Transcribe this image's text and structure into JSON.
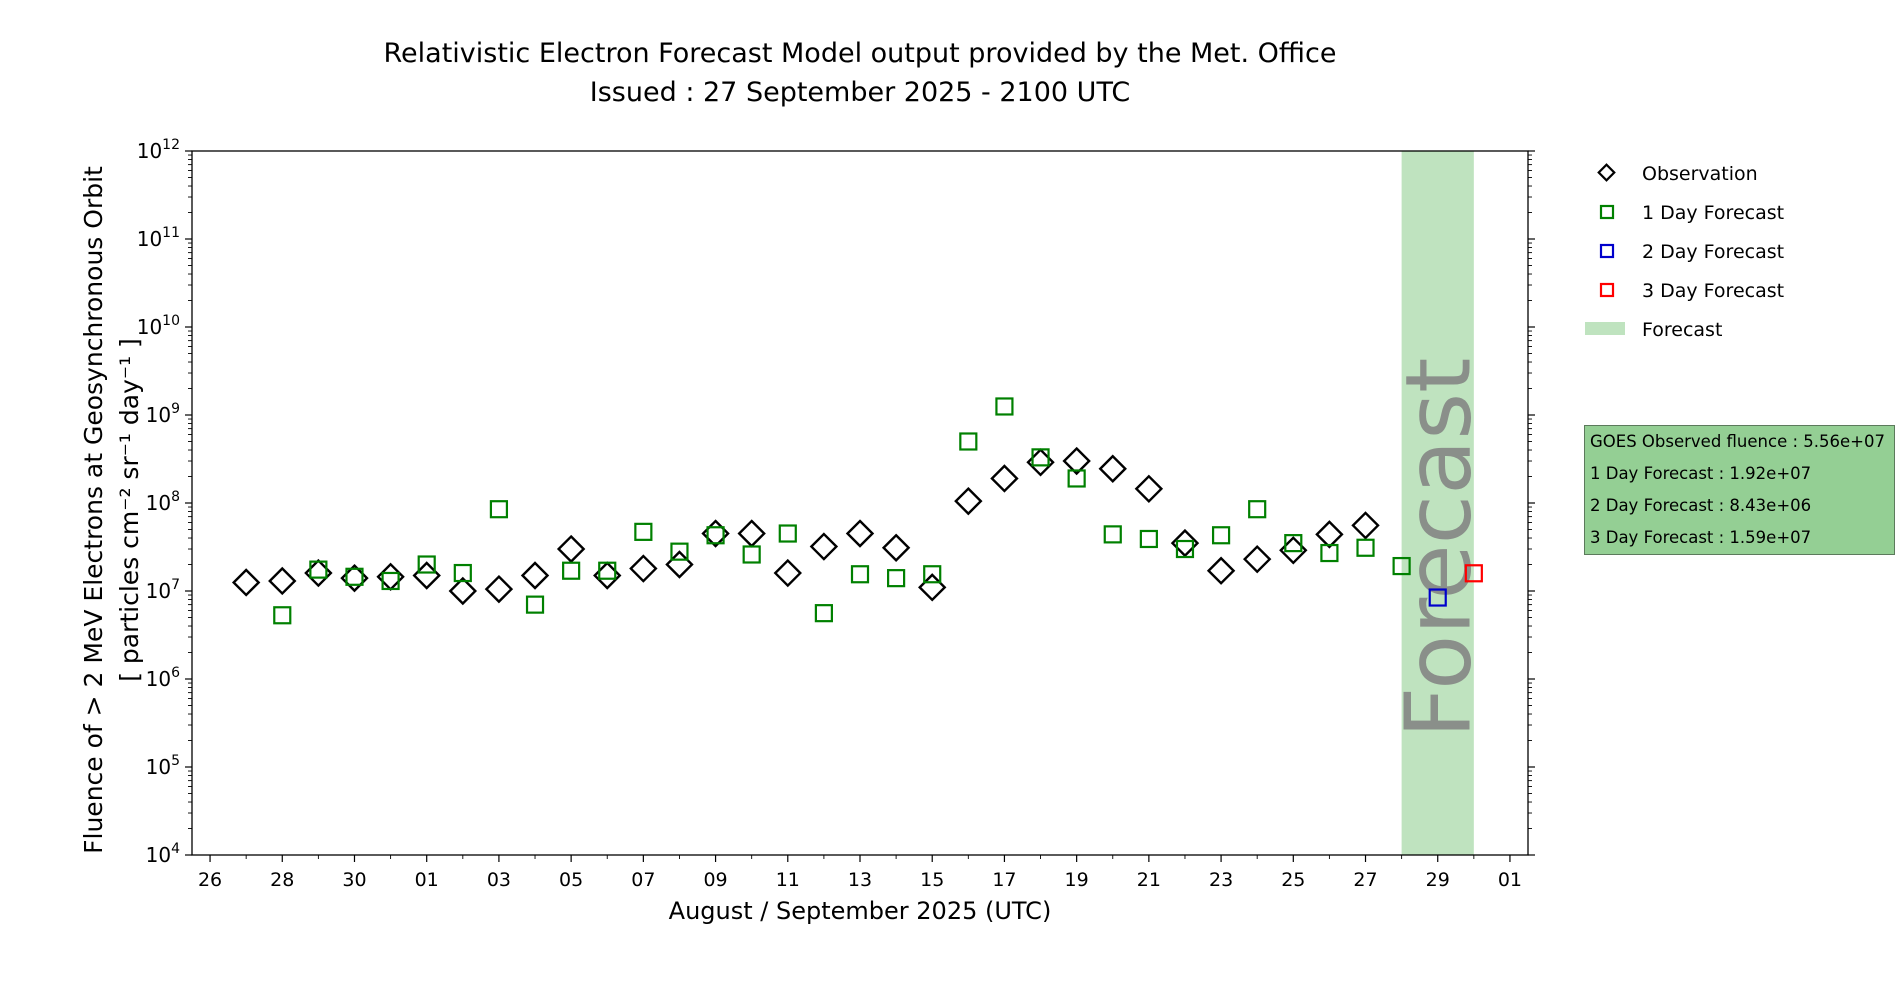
{
  "chart_data": {
    "type": "scatter",
    "title": "Relativistic Electron Forecast Model output provided by the Met. Office",
    "subtitle": "Issued : 27 September 2025 - 2100 UTC",
    "xlabel": "August / September 2025 (UTC)",
    "ylabel_line1": "Fluence of > 2 MeV Electrons at Geosynchronous Orbit",
    "ylabel_line2": "[ particles cm⁻² sr⁻¹ day⁻¹ ]",
    "y_scale": "log",
    "ylim": [
      10000,
      1000000000000
    ],
    "xlim": [
      "2025-08-25T12:00",
      "2025-10-01T12:00"
    ],
    "x_ticks": [
      "2025-08-26",
      "2025-08-28",
      "2025-08-30",
      "2025-09-01",
      "2025-09-03",
      "2025-09-05",
      "2025-09-07",
      "2025-09-09",
      "2025-09-11",
      "2025-09-13",
      "2025-09-15",
      "2025-09-17",
      "2025-09-19",
      "2025-09-21",
      "2025-09-23",
      "2025-09-25",
      "2025-09-27",
      "2025-09-29",
      "2025-10-01"
    ],
    "x_tick_labels": [
      "26",
      "28",
      "30",
      "01",
      "03",
      "05",
      "07",
      "09",
      "11",
      "13",
      "15",
      "17",
      "19",
      "21",
      "23",
      "25",
      "27",
      "29",
      "01"
    ],
    "y_ticks": [
      {
        "value": 10000,
        "base": "10",
        "exp": "4"
      },
      {
        "value": 100000,
        "base": "10",
        "exp": "5"
      },
      {
        "value": 1000000,
        "base": "10",
        "exp": "6"
      },
      {
        "value": 10000000,
        "base": "10",
        "exp": "7"
      },
      {
        "value": 100000000,
        "base": "10",
        "exp": "8"
      },
      {
        "value": 1000000000,
        "base": "10",
        "exp": "9"
      },
      {
        "value": 10000000000,
        "base": "10",
        "exp": "10"
      },
      {
        "value": 100000000000,
        "base": "10",
        "exp": "11"
      },
      {
        "value": 1000000000000,
        "base": "10",
        "exp": "12"
      }
    ],
    "forecast_region": {
      "start": "2025-09-28",
      "end": "2025-09-30",
      "label": "Forecast",
      "color": "#bfe3bf"
    },
    "series": [
      {
        "name": "Observation",
        "marker": "diamond",
        "color": "#000000",
        "points": [
          [
            "2025-08-27",
            12500000
          ],
          [
            "2025-08-28",
            13000000
          ],
          [
            "2025-08-29",
            16000000
          ],
          [
            "2025-08-30",
            14000000
          ],
          [
            "2025-08-31",
            14500000
          ],
          [
            "2025-09-01",
            15000000
          ],
          [
            "2025-09-02",
            10000000
          ],
          [
            "2025-09-03",
            10500000
          ],
          [
            "2025-09-04",
            15000000
          ],
          [
            "2025-09-05",
            30000000
          ],
          [
            "2025-09-06",
            15000000
          ],
          [
            "2025-09-07",
            18000000
          ],
          [
            "2025-09-08",
            20000000
          ],
          [
            "2025-09-09",
            45000000
          ],
          [
            "2025-09-10",
            45000000
          ],
          [
            "2025-09-11",
            16000000
          ],
          [
            "2025-09-12",
            32000000
          ],
          [
            "2025-09-13",
            45000000
          ],
          [
            "2025-09-14",
            31000000
          ],
          [
            "2025-09-15",
            11000000
          ],
          [
            "2025-09-16",
            105000000
          ],
          [
            "2025-09-17",
            190000000
          ],
          [
            "2025-09-18",
            290000000
          ],
          [
            "2025-09-19",
            300000000
          ],
          [
            "2025-09-20",
            245000000
          ],
          [
            "2025-09-21",
            145000000
          ],
          [
            "2025-09-22",
            35000000
          ],
          [
            "2025-09-23",
            17000000
          ],
          [
            "2025-09-24",
            23000000
          ],
          [
            "2025-09-25",
            29000000
          ],
          [
            "2025-09-26",
            44000000
          ],
          [
            "2025-09-27",
            55600000
          ]
        ]
      },
      {
        "name": "1 Day Forecast",
        "marker": "square",
        "color": "#008000",
        "points": [
          [
            "2025-08-28",
            5300000
          ],
          [
            "2025-08-29",
            17500000
          ],
          [
            "2025-08-30",
            14500000
          ],
          [
            "2025-08-31",
            13000000
          ],
          [
            "2025-09-01",
            20000000
          ],
          [
            "2025-09-02",
            16000000
          ],
          [
            "2025-09-03",
            85000000
          ],
          [
            "2025-09-04",
            7000000
          ],
          [
            "2025-09-05",
            17000000
          ],
          [
            "2025-09-06",
            17000000
          ],
          [
            "2025-09-07",
            47000000
          ],
          [
            "2025-09-08",
            28000000
          ],
          [
            "2025-09-09",
            43000000
          ],
          [
            "2025-09-10",
            26000000
          ],
          [
            "2025-09-11",
            45000000
          ],
          [
            "2025-09-12",
            5600000
          ],
          [
            "2025-09-13",
            15500000
          ],
          [
            "2025-09-14",
            14000000
          ],
          [
            "2025-09-15",
            15500000
          ],
          [
            "2025-09-16",
            500000000
          ],
          [
            "2025-09-17",
            1250000000
          ],
          [
            "2025-09-18",
            330000000
          ],
          [
            "2025-09-19",
            190000000
          ],
          [
            "2025-09-20",
            44000000
          ],
          [
            "2025-09-21",
            39000000
          ],
          [
            "2025-09-22",
            30000000
          ],
          [
            "2025-09-23",
            43000000
          ],
          [
            "2025-09-24",
            85000000
          ],
          [
            "2025-09-25",
            35000000
          ],
          [
            "2025-09-26",
            27000000
          ],
          [
            "2025-09-27",
            31000000
          ],
          [
            "2025-09-28",
            19200000
          ]
        ]
      },
      {
        "name": "2 Day Forecast",
        "marker": "square",
        "color": "#0000cc",
        "points": [
          [
            "2025-09-29",
            8430000
          ]
        ]
      },
      {
        "name": "3 Day Forecast",
        "marker": "square",
        "color": "#ff0000",
        "points": [
          [
            "2025-09-30",
            15900000
          ]
        ]
      }
    ],
    "legend": {
      "placement": "right",
      "items": [
        {
          "label": "Observation",
          "marker": "diamond",
          "color": "#000000"
        },
        {
          "label": "1 Day Forecast",
          "marker": "square",
          "color": "#008000"
        },
        {
          "label": "2 Day Forecast",
          "marker": "square",
          "color": "#0000cc"
        },
        {
          "label": "3 Day Forecast",
          "marker": "square",
          "color": "#ff0000"
        },
        {
          "label": "Forecast",
          "marker": "patch",
          "color": "#bfe3bf"
        }
      ]
    },
    "info_box": [
      "GOES Observed fluence : 5.56e+07",
      "1 Day Forecast : 1.92e+07",
      "2 Day Forecast : 8.43e+06",
      "3 Day Forecast : 1.59e+07"
    ]
  }
}
